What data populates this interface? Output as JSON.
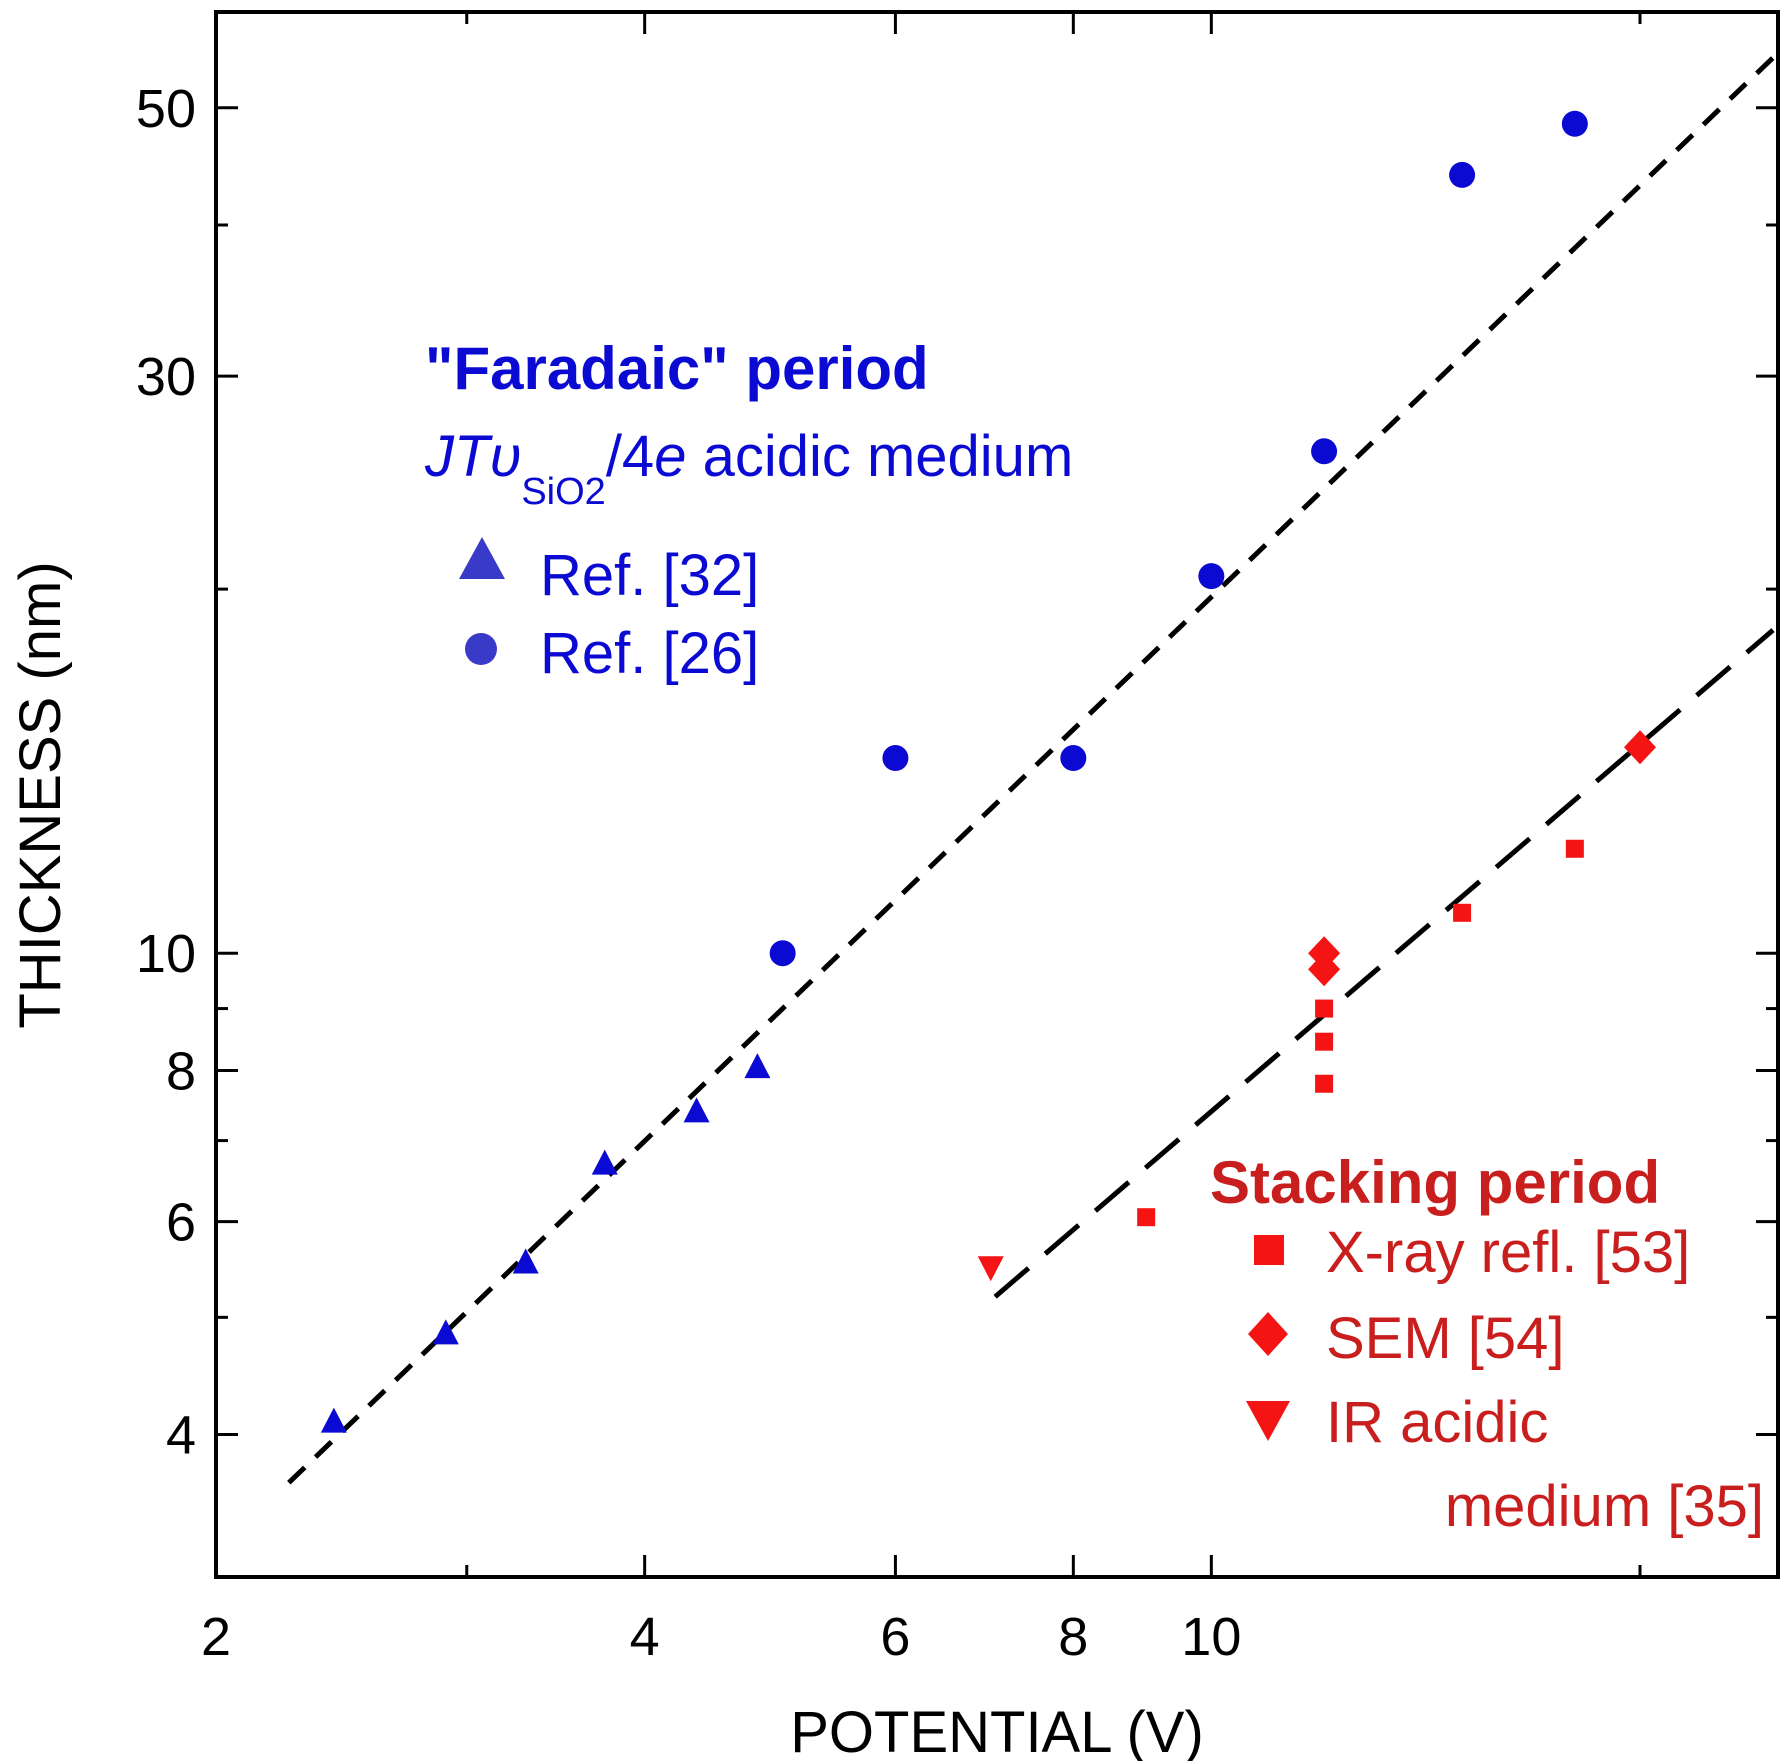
{
  "colors": {
    "blue": "#0a0ad2",
    "blue_legend": "#3a3ac8",
    "red": "#f41414",
    "dark_red": "#c81e1e",
    "black": "#000000"
  },
  "chart_data": {
    "type": "scatter",
    "xscale": "log",
    "yscale": "log",
    "xlabel": "POTENTIAL (V)",
    "ylabel": "THICKNESS (nm)",
    "xlim": [
      2,
      25
    ],
    "ylim": [
      3.05,
      60
    ],
    "x_ticks": [
      {
        "value": 2,
        "label": "2"
      },
      {
        "value": 3,
        "label": ""
      },
      {
        "value": 4,
        "label": "4"
      },
      {
        "value": 6,
        "label": "6"
      },
      {
        "value": 8,
        "label": "8"
      },
      {
        "value": 10,
        "label": "10"
      },
      {
        "value": 20,
        "label": ""
      }
    ],
    "y_ticks": [
      {
        "value": 4,
        "label": "4"
      },
      {
        "value": 5,
        "label": ""
      },
      {
        "value": 6,
        "label": "6"
      },
      {
        "value": 7,
        "label": ""
      },
      {
        "value": 8,
        "label": "8"
      },
      {
        "value": 9,
        "label": ""
      },
      {
        "value": 10,
        "label": "10"
      },
      {
        "value": 20,
        "label": ""
      },
      {
        "value": 30,
        "label": "30"
      },
      {
        "value": 40,
        "label": ""
      },
      {
        "value": 50,
        "label": "50"
      }
    ],
    "series": [
      {
        "name": "Ref. [32]",
        "group": "faradaic",
        "marker": "triangle-up",
        "color": "#0a0ad2",
        "points": [
          [
            2.42,
            4.1
          ],
          [
            2.9,
            4.85
          ],
          [
            3.3,
            5.55
          ],
          [
            3.75,
            6.7
          ],
          [
            4.35,
            7.4
          ],
          [
            4.8,
            8.05
          ]
        ]
      },
      {
        "name": "Ref. [26]",
        "group": "faradaic",
        "marker": "circle",
        "color": "#0a0ad2",
        "points": [
          [
            5,
            10
          ],
          [
            6,
            14.5
          ],
          [
            8,
            14.5
          ],
          [
            10,
            20.5
          ],
          [
            12,
            26
          ],
          [
            15,
            44
          ],
          [
            18,
            48.5
          ]
        ]
      },
      {
        "name": "X-ray refl. [53]",
        "group": "stacking",
        "marker": "square",
        "color": "#f41414",
        "points": [
          [
            9,
            6.05
          ],
          [
            12,
            9
          ],
          [
            12,
            8.45
          ],
          [
            12,
            7.8
          ],
          [
            15,
            10.8
          ],
          [
            18,
            12.2
          ]
        ]
      },
      {
        "name": "SEM [54]",
        "group": "stacking",
        "marker": "diamond",
        "color": "#f41414",
        "points": [
          [
            12,
            10
          ],
          [
            12,
            9.7
          ],
          [
            20,
            14.8
          ]
        ]
      },
      {
        "name": "IR acidic medium [35]",
        "group": "stacking",
        "marker": "triangle-down",
        "color": "#f41414",
        "points": [
          [
            7,
            5.5
          ]
        ]
      }
    ],
    "fit_lines": [
      {
        "name": "faradaic-fit",
        "style": "short-dash",
        "color": "#000000",
        "x": [
          2.25,
          24.8
        ],
        "y": [
          3.65,
          55
        ]
      },
      {
        "name": "stacking-fit",
        "style": "long-dash",
        "color": "#000000",
        "x": [
          7.05,
          24.8
        ],
        "y": [
          5.2,
          18.5
        ]
      }
    ],
    "legend": {
      "faradaic": {
        "title": "\"Faradaic\" period",
        "subtitle_main": "JT",
        "subtitle_upsilon": "υ",
        "subtitle_sub": "SiO2",
        "subtitle_slash": "/4",
        "subtitle_e": "e",
        "subtitle_rest": " acidic medium",
        "entries": [
          "Ref. [32]",
          "Ref. [26]"
        ]
      },
      "stacking": {
        "title": "Stacking period",
        "entries": [
          "X-ray refl. [53]",
          "SEM [54]",
          "IR acidic",
          "medium [35]"
        ]
      }
    }
  }
}
